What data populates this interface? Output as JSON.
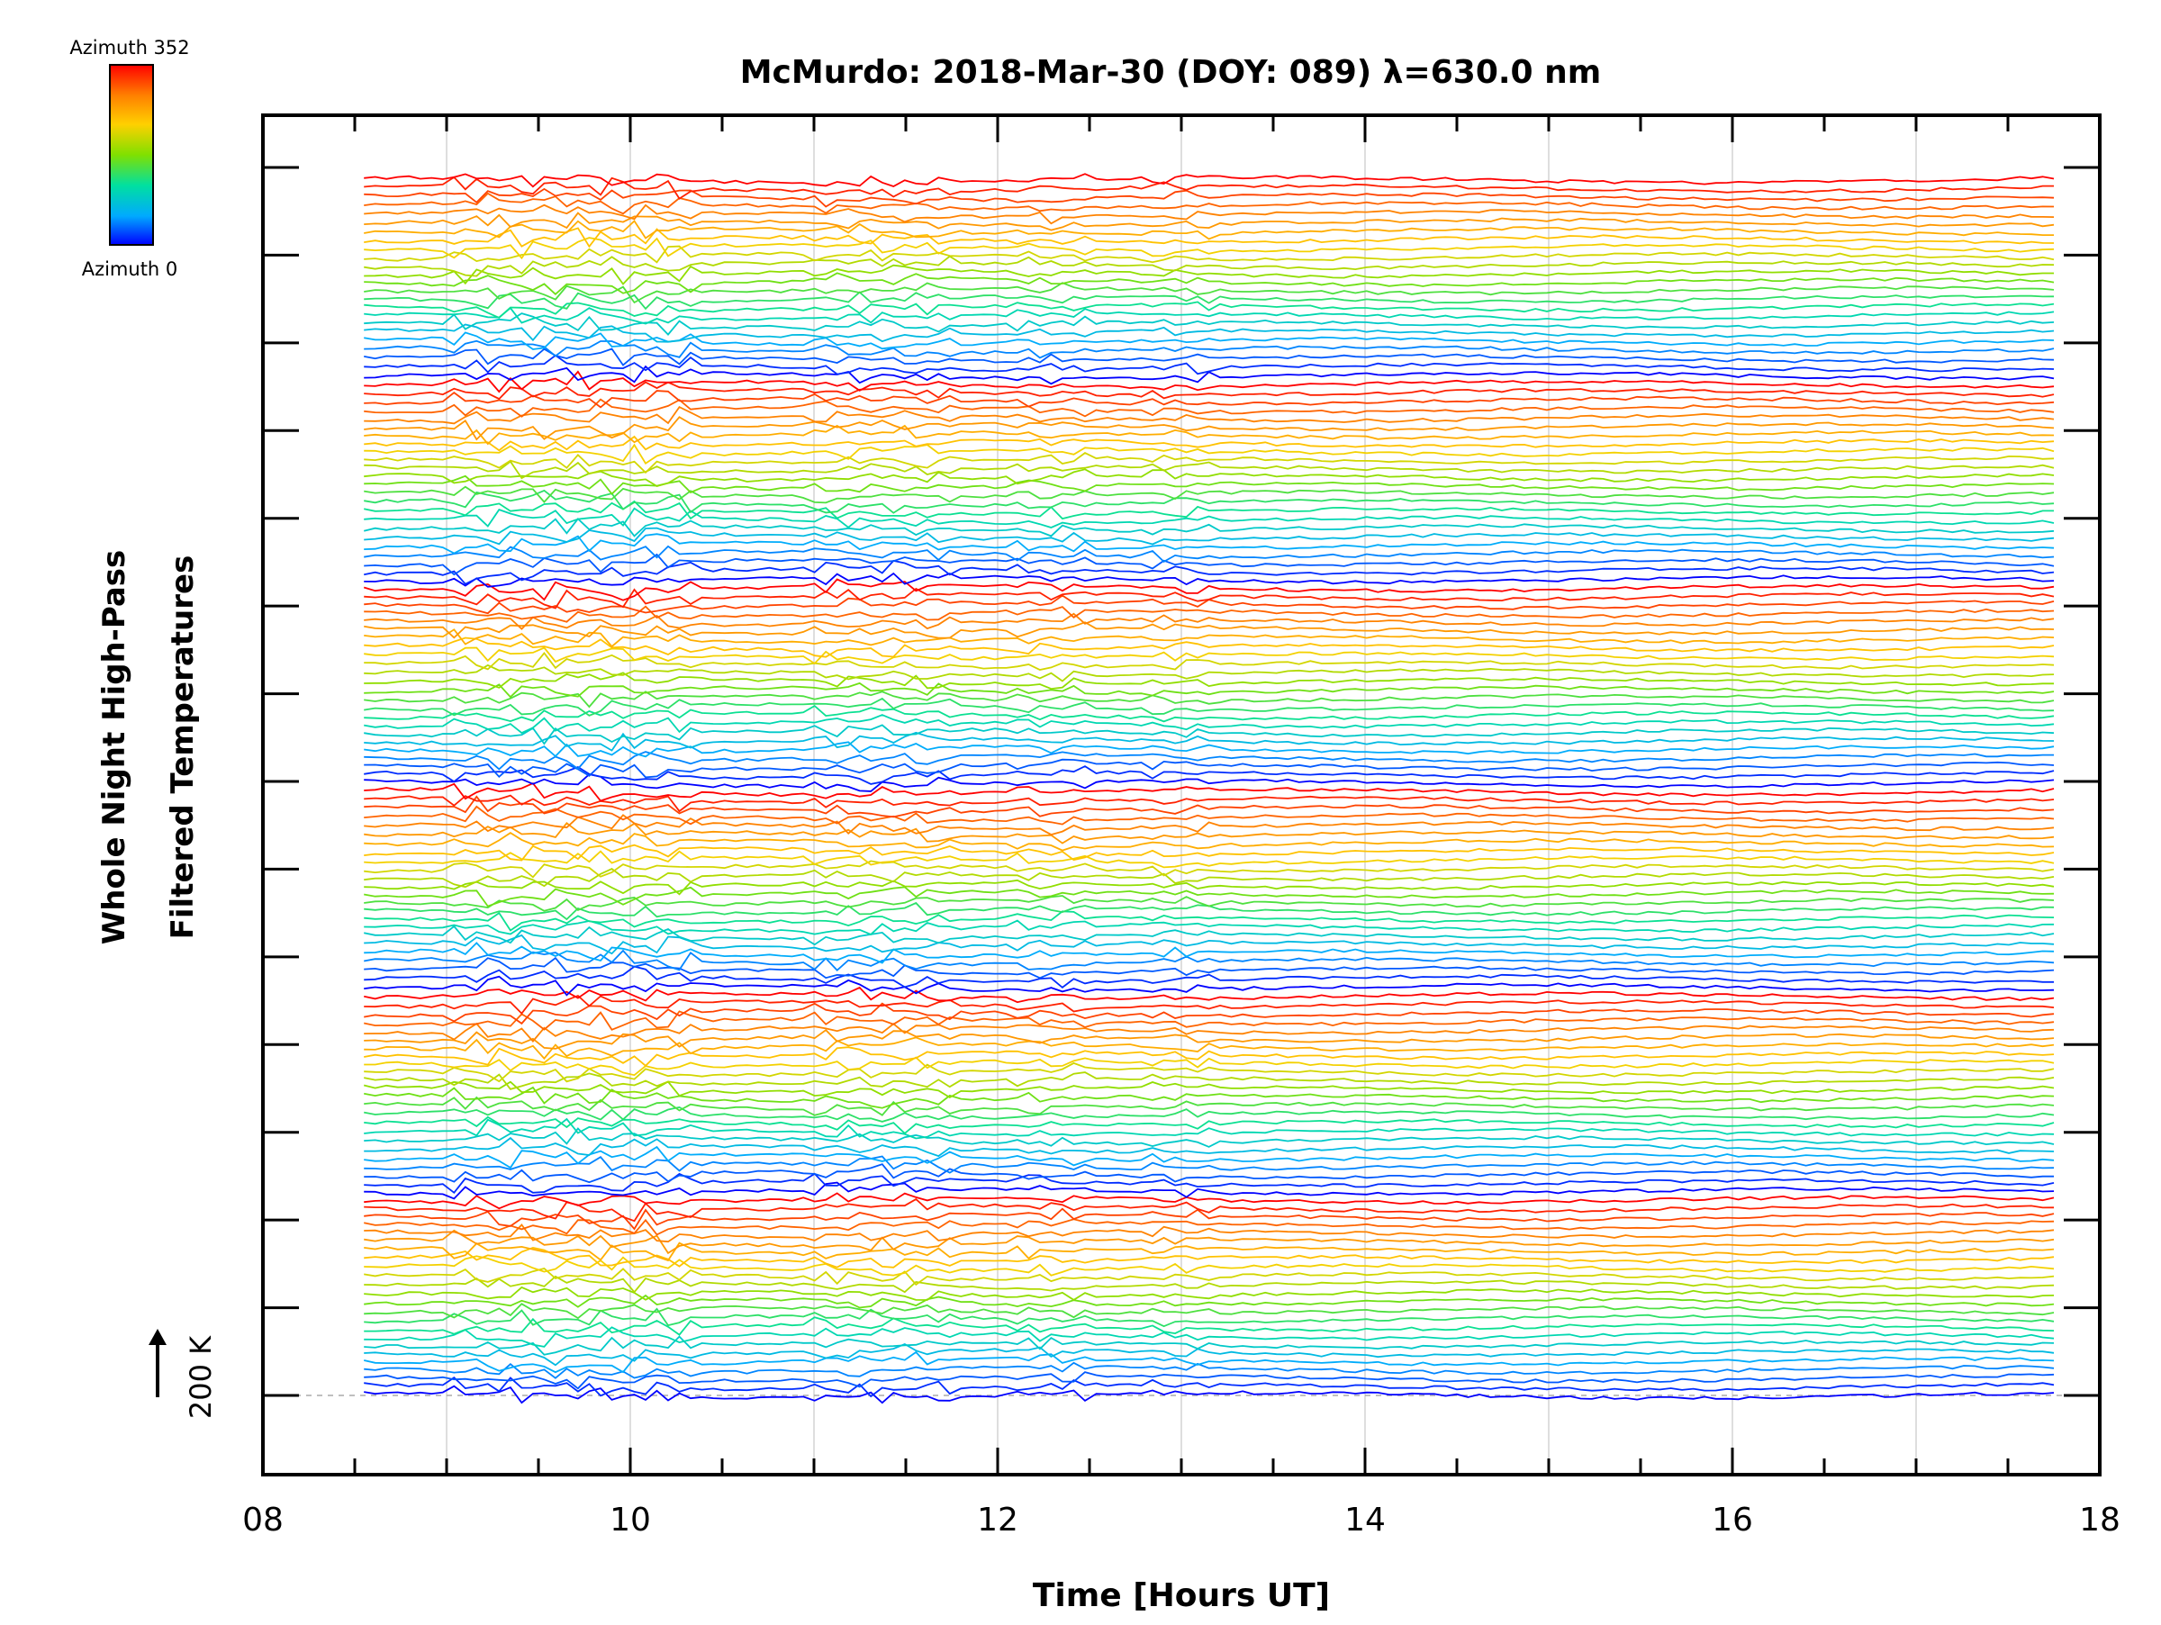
{
  "chart_data": {
    "type": "line",
    "title": "McMurdo: 2018-Mar-30 (DOY: 089) λ=630.0 nm",
    "xlabel": "Time [Hours UT]",
    "ylabel_line1": "Whole Night High-Pass",
    "ylabel_line2": "Filtered Temperatures",
    "xlim": [
      8,
      18
    ],
    "x_ticks": [
      8,
      10,
      12,
      14,
      16,
      18
    ],
    "x_tick_labels": [
      "08",
      "10",
      "12",
      "14",
      "16",
      "18"
    ],
    "x_minor_step": 0.5,
    "x_grid_hours": [
      9,
      10,
      11,
      12,
      13,
      14,
      15,
      16,
      17
    ],
    "x_start": 8.55,
    "x_end": 17.75,
    "y_major_tick_count": 15,
    "scale_bar_label": "200 K",
    "baseline": "dashed gray line at the lowest trace offset",
    "legend": {
      "title_top": "Azimuth  352",
      "title_bottom": "Azimuth  0",
      "colors": [
        "#0000ff",
        "#00aaff",
        "#00e0a0",
        "#80e000",
        "#ffd000",
        "#ff8000",
        "#ff0000"
      ]
    },
    "series_description": "Stacked, vertically offset temperature traces (one per look direction); colour encodes azimuth from 0 (blue) to 352 (red); azimuth cycle repeats in bands.",
    "num_series": 144,
    "azimuth_cycle": 24,
    "seed": 17
  }
}
